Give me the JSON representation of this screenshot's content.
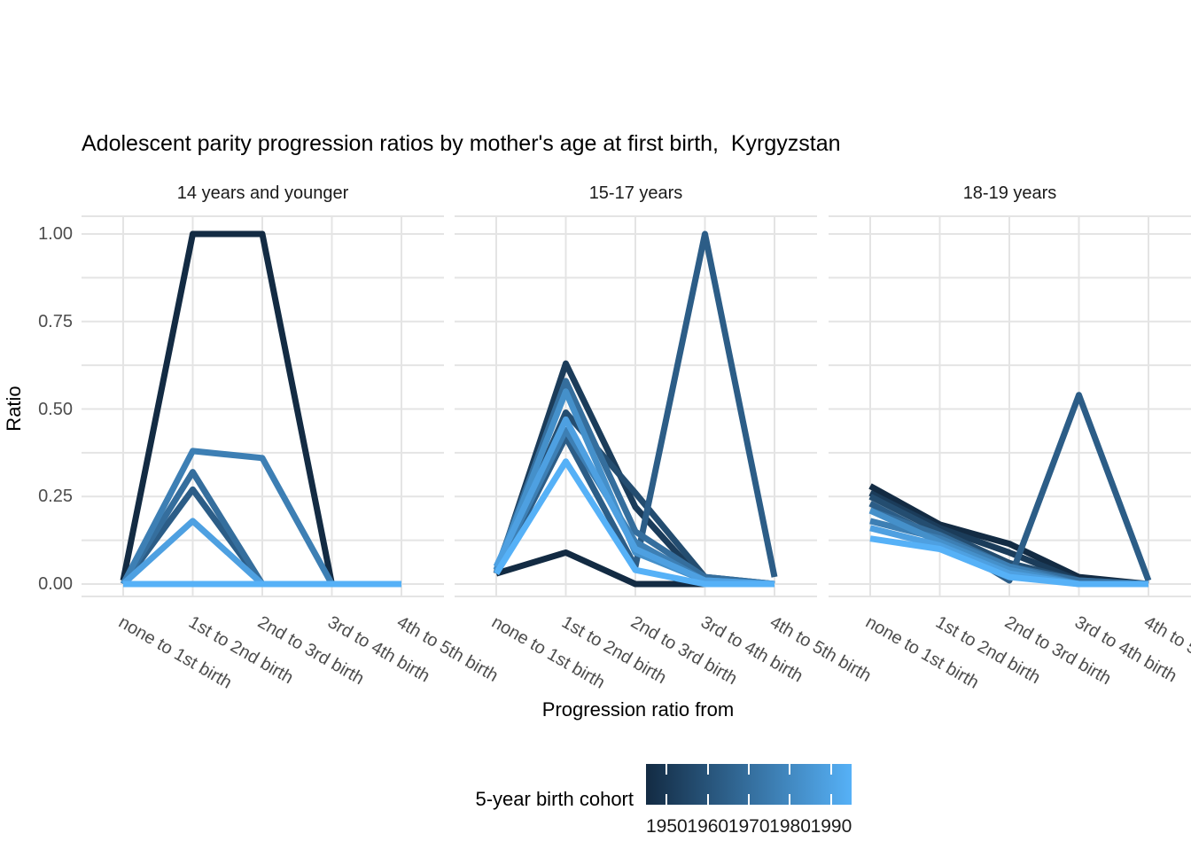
{
  "title": "Adolescent parity progression ratios by mother's age at first birth,  Kyrgyzstan",
  "colors": {
    "scale_start": "#132B43",
    "scale_end": "#56B1F7",
    "grid": "#e4e4e4",
    "axis_text": "#4d4d4d",
    "strip_text": "#1a1a1a",
    "title_text": "#000000"
  },
  "chart_data": {
    "type": "line",
    "title": "Adolescent parity progression ratios by mother's age at first birth,  Kyrgyzstan",
    "xlabel": "Progression ratio from",
    "ylabel": "Ratio",
    "ylim": [
      0,
      1
    ],
    "grid": true,
    "categories": [
      "none to 1st birth",
      "1st to 2nd birth",
      "2nd to 3rd birth",
      "3rd to 4th birth",
      "4th to 5th birth"
    ],
    "yticks": [
      {
        "label": "1.00",
        "value": 1.0
      },
      {
        "label": "0.75",
        "value": 0.75
      },
      {
        "label": "0.50",
        "value": 0.5
      },
      {
        "label": "0.25",
        "value": 0.25
      },
      {
        "label": "0.00",
        "value": 0.0
      }
    ],
    "facets": [
      {
        "label": "14 years and younger",
        "series": [
          {
            "cohort": 1950,
            "values": [
              0.01,
              1.0,
              1.0,
              0.0,
              0.0
            ]
          },
          {
            "cohort": 1955,
            "values": [
              0.0,
              0.0,
              0.0,
              0.0,
              0.0
            ]
          },
          {
            "cohort": 1960,
            "values": [
              0.0,
              0.0,
              0.0,
              0.0,
              0.0
            ]
          },
          {
            "cohort": 1965,
            "values": [
              0.0,
              0.27,
              0.0,
              0.0,
              0.0
            ]
          },
          {
            "cohort": 1970,
            "values": [
              0.0,
              0.32,
              0.0,
              0.0,
              0.0
            ]
          },
          {
            "cohort": 1975,
            "values": [
              0.0,
              0.38,
              0.36,
              0.0,
              0.0
            ]
          },
          {
            "cohort": 1980,
            "values": [
              0.0,
              0.0,
              0.0,
              0.0,
              0.0
            ]
          },
          {
            "cohort": 1985,
            "values": [
              0.0,
              0.18,
              0.0,
              0.0,
              0.0
            ]
          },
          {
            "cohort": 1990,
            "values": [
              0.0,
              0.0,
              0.0,
              0.0,
              0.0
            ]
          }
        ]
      },
      {
        "label": "15-17 years",
        "series": [
          {
            "cohort": 1950,
            "values": [
              0.03,
              0.09,
              0.0,
              0.0,
              0.0
            ]
          },
          {
            "cohort": 1955,
            "values": [
              0.03,
              0.63,
              0.22,
              0.0,
              0.0
            ]
          },
          {
            "cohort": 1960,
            "values": [
              0.03,
              0.49,
              0.26,
              0.02,
              0.0
            ]
          },
          {
            "cohort": 1965,
            "values": [
              0.03,
              0.42,
              0.05,
              1.0,
              0.02
            ]
          },
          {
            "cohort": 1970,
            "values": [
              0.04,
              0.58,
              0.15,
              0.02,
              0.0
            ]
          },
          {
            "cohort": 1975,
            "values": [
              0.04,
              0.44,
              0.12,
              0.01,
              0.0
            ]
          },
          {
            "cohort": 1980,
            "values": [
              0.04,
              0.55,
              0.09,
              0.01,
              0.0
            ]
          },
          {
            "cohort": 1985,
            "values": [
              0.05,
              0.47,
              0.1,
              0.01,
              0.0
            ]
          },
          {
            "cohort": 1990,
            "values": [
              0.03,
              0.35,
              0.04,
              0.0,
              0.0
            ]
          }
        ]
      },
      {
        "label": "18-19 years",
        "series": [
          {
            "cohort": 1950,
            "values": [
              0.28,
              0.17,
              0.115,
              0.02,
              0.0
            ]
          },
          {
            "cohort": 1955,
            "values": [
              0.26,
              0.16,
              0.09,
              0.01,
              0.0
            ]
          },
          {
            "cohort": 1960,
            "values": [
              0.25,
              0.15,
              0.06,
              0.01,
              0.0
            ]
          },
          {
            "cohort": 1965,
            "values": [
              0.23,
              0.13,
              0.01,
              0.54,
              0.01
            ]
          },
          {
            "cohort": 1970,
            "values": [
              0.21,
              0.14,
              0.05,
              0.01,
              0.0
            ]
          },
          {
            "cohort": 1975,
            "values": [
              0.18,
              0.13,
              0.05,
              0.0,
              0.0
            ]
          },
          {
            "cohort": 1980,
            "values": [
              0.21,
              0.12,
              0.04,
              0.0,
              0.0
            ]
          },
          {
            "cohort": 1985,
            "values": [
              0.16,
              0.11,
              0.03,
              0.0,
              0.0
            ]
          },
          {
            "cohort": 1990,
            "values": [
              0.13,
              0.1,
              0.02,
              0.0,
              0.0
            ]
          }
        ]
      }
    ],
    "legend": {
      "title": "5-year birth cohort",
      "type": "colorbar",
      "tick_labels": [
        "1950",
        "1960",
        "1970",
        "1980",
        "1990"
      ],
      "gradient_start": "#132B43",
      "gradient_end": "#56B1F7",
      "position": "bottom"
    }
  }
}
